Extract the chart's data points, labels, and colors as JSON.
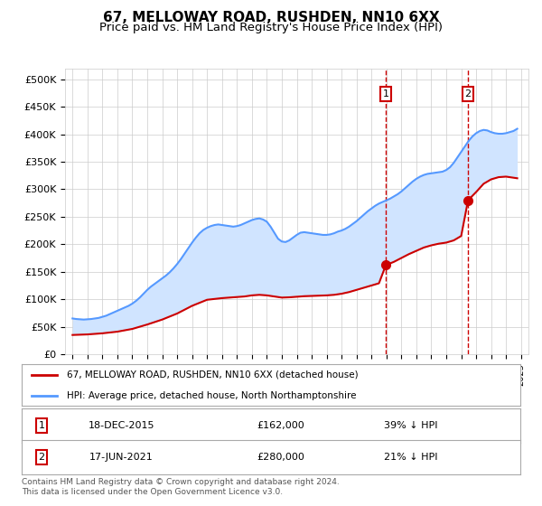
{
  "title": "67, MELLOWAY ROAD, RUSHDEN, NN10 6XX",
  "subtitle": "Price paid vs. HM Land Registry's House Price Index (HPI)",
  "title_fontsize": 11,
  "subtitle_fontsize": 9.5,
  "ylabel_ticks": [
    "£0",
    "£50K",
    "£100K",
    "£150K",
    "£200K",
    "£250K",
    "£300K",
    "£350K",
    "£400K",
    "£450K",
    "£500K"
  ],
  "ytick_values": [
    0,
    50000,
    100000,
    150000,
    200000,
    250000,
    300000,
    350000,
    400000,
    450000,
    500000
  ],
  "ylim": [
    0,
    520000
  ],
  "xlim_start": 1994.5,
  "xlim_end": 2025.5,
  "red_line_color": "#cc0000",
  "blue_line_color": "#5599ff",
  "shade_color": "#d0e4ff",
  "marker_color": "#cc0000",
  "vline_color": "#cc0000",
  "sale1_x": 2015.96,
  "sale1_y": 162000,
  "sale2_x": 2021.46,
  "sale2_y": 280000,
  "legend_label1": "67, MELLOWAY ROAD, RUSHDEN, NN10 6XX (detached house)",
  "legend_label2": "HPI: Average price, detached house, North Northamptonshire",
  "table_row1": [
    "1",
    "18-DEC-2015",
    "£162,000",
    "39% ↓ HPI"
  ],
  "table_row2": [
    "2",
    "17-JUN-2021",
    "£280,000",
    "21% ↓ HPI"
  ],
  "footer": "Contains HM Land Registry data © Crown copyright and database right 2024.\nThis data is licensed under the Open Government Licence v3.0."
}
